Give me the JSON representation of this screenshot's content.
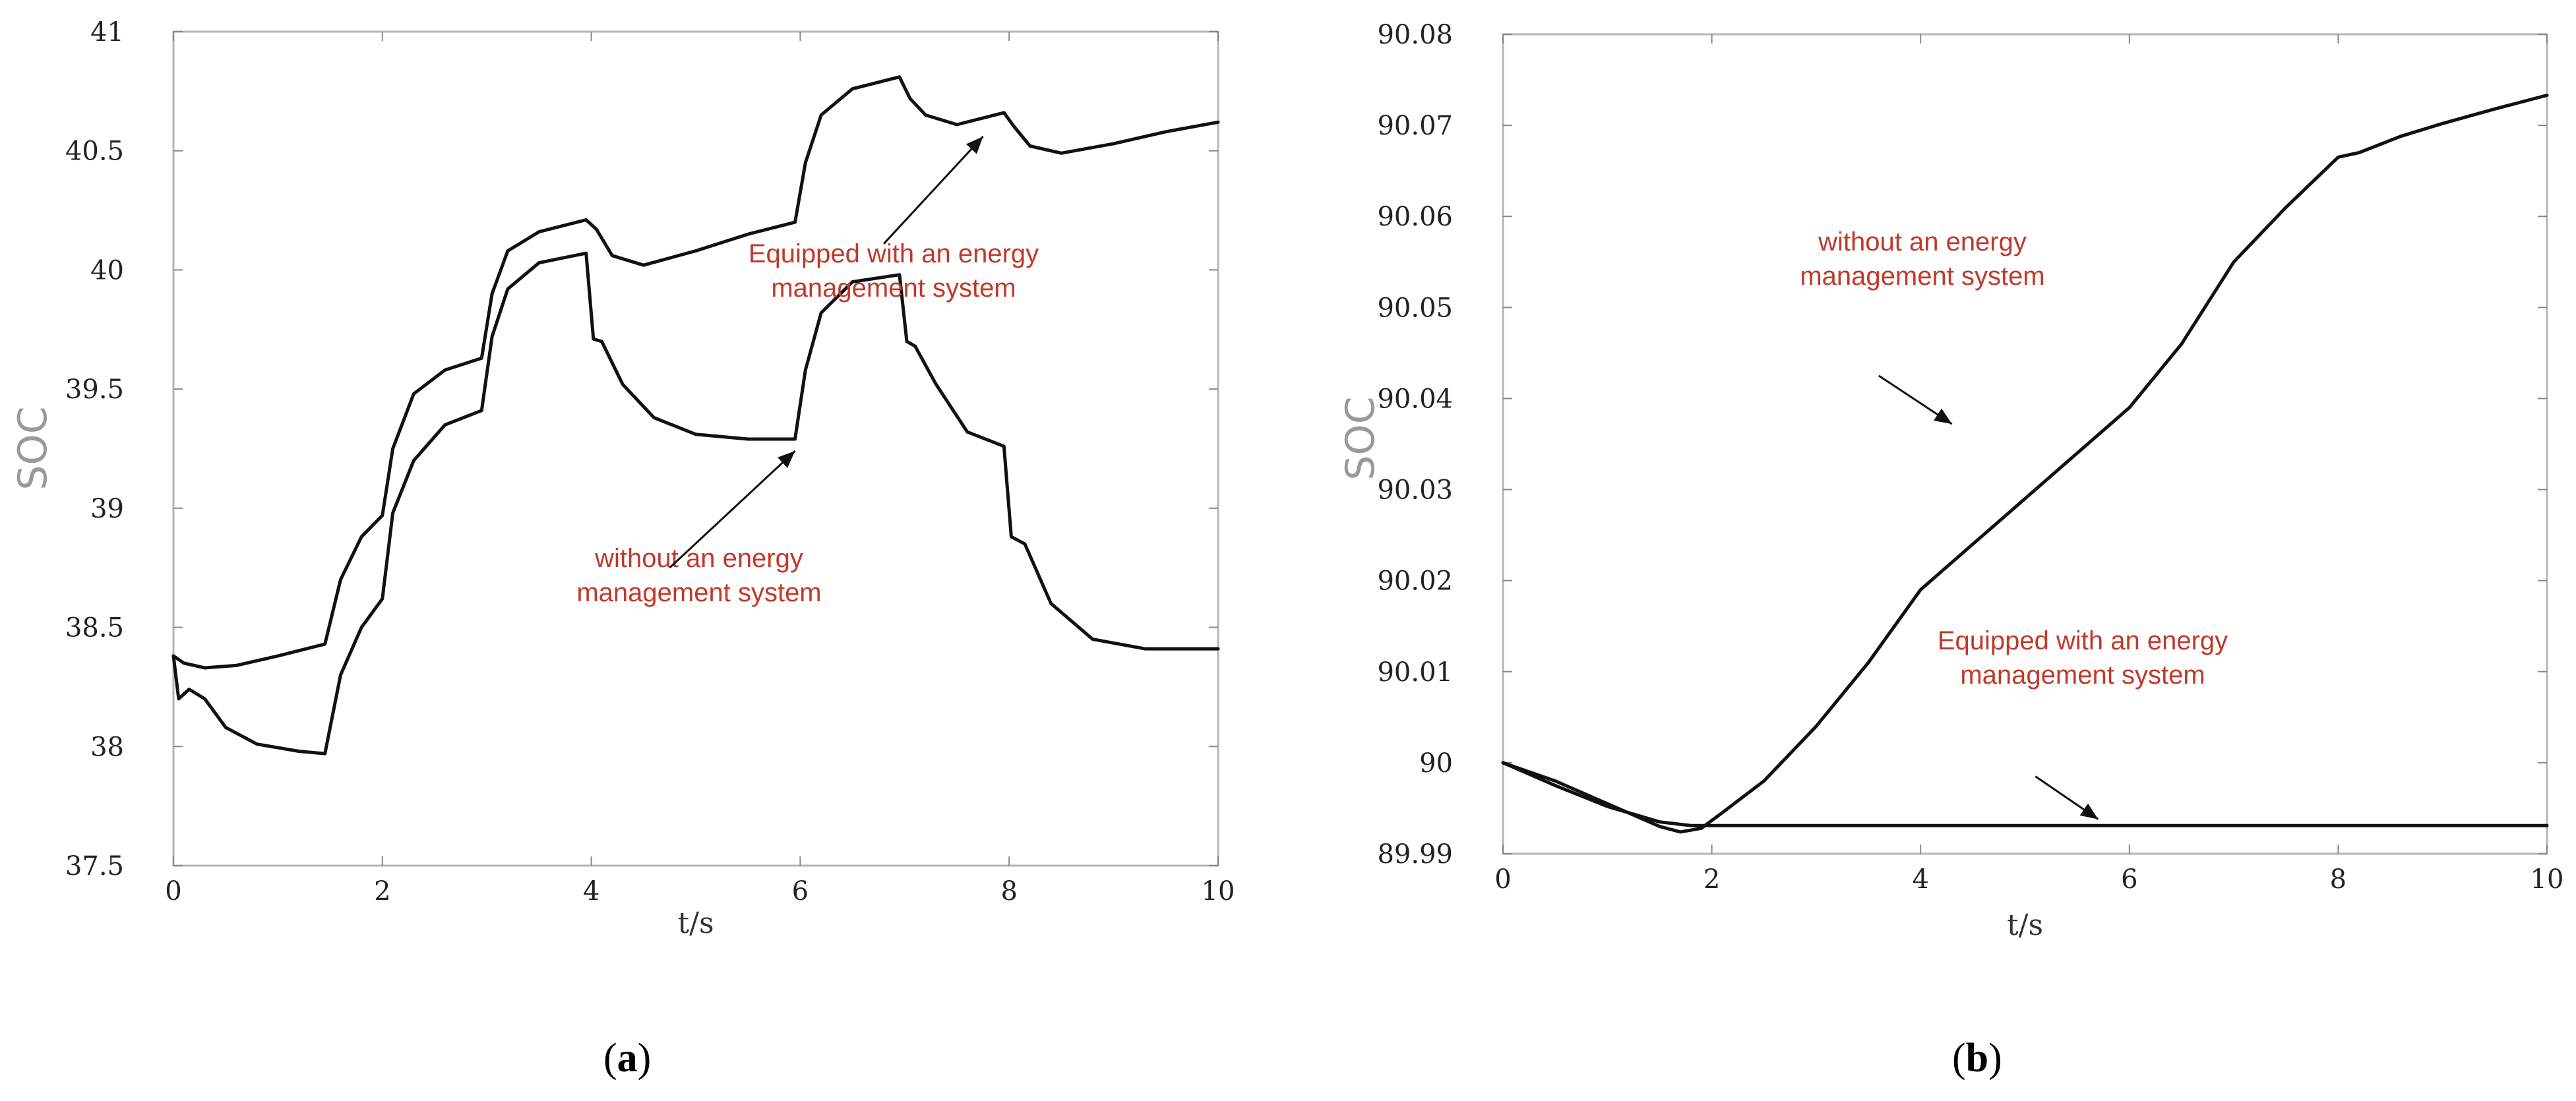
{
  "chart_data": [
    {
      "type": "line",
      "panel": "a",
      "caption_letter": "a",
      "xlabel": "t/s",
      "ylabel": "SOC",
      "xlim": [
        0,
        10
      ],
      "ylim": [
        37.5,
        41
      ],
      "xticks": [
        "0",
        "2",
        "4",
        "6",
        "8",
        "10"
      ],
      "yticks": [
        "37.5",
        "38",
        "38.5",
        "39",
        "39.5",
        "40",
        "40.5",
        "41"
      ],
      "series": [
        {
          "name": "Equipped with an energy management system",
          "x": [
            0,
            0.1,
            0.3,
            0.6,
            1.0,
            1.45,
            1.6,
            1.8,
            2.0,
            2.1,
            2.3,
            2.6,
            2.95,
            3.05,
            3.2,
            3.5,
            3.95,
            4.05,
            4.2,
            4.5,
            5.0,
            5.5,
            5.95,
            6.05,
            6.2,
            6.5,
            6.95,
            7.05,
            7.2,
            7.5,
            7.95,
            8.05,
            8.2,
            8.5,
            9.0,
            9.5,
            10
          ],
          "y": [
            38.38,
            38.35,
            38.33,
            38.34,
            38.38,
            38.43,
            38.7,
            38.88,
            38.97,
            39.25,
            39.48,
            39.58,
            39.63,
            39.9,
            40.08,
            40.16,
            40.21,
            40.17,
            40.06,
            40.02,
            40.08,
            40.15,
            40.2,
            40.45,
            40.65,
            40.76,
            40.81,
            40.72,
            40.65,
            40.61,
            40.66,
            40.6,
            40.52,
            40.49,
            40.53,
            40.58,
            40.62
          ]
        },
        {
          "name": "without an energy management system",
          "x": [
            0,
            0.05,
            0.15,
            0.3,
            0.5,
            0.8,
            1.2,
            1.45,
            1.6,
            1.8,
            2.0,
            2.1,
            2.3,
            2.6,
            2.95,
            3.05,
            3.2,
            3.5,
            3.95,
            4.02,
            4.1,
            4.3,
            4.6,
            5.0,
            5.5,
            5.95,
            6.05,
            6.2,
            6.5,
            6.95,
            7.02,
            7.1,
            7.3,
            7.6,
            7.95,
            8.02,
            8.15,
            8.4,
            8.8,
            9.3,
            10
          ],
          "y": [
            38.38,
            38.2,
            38.24,
            38.2,
            38.08,
            38.01,
            37.98,
            37.97,
            38.3,
            38.5,
            38.62,
            38.98,
            39.2,
            39.35,
            39.41,
            39.72,
            39.92,
            40.03,
            40.07,
            39.71,
            39.7,
            39.52,
            39.38,
            39.31,
            39.29,
            39.29,
            39.58,
            39.82,
            39.95,
            39.98,
            39.7,
            39.68,
            39.52,
            39.32,
            39.26,
            38.88,
            38.85,
            38.6,
            38.45,
            38.41,
            38.41
          ]
        }
      ],
      "annotations": [
        {
          "lines": [
            "Equipped with an energy",
            "management system"
          ],
          "arrow_to_data": [
            7.75,
            40.56
          ],
          "arrow_from_data": [
            6.8,
            40.11
          ]
        },
        {
          "lines": [
            "without an energy",
            "management system"
          ],
          "arrow_to_data": [
            5.95,
            39.24
          ],
          "arrow_from_data": [
            4.75,
            38.75
          ]
        }
      ]
    },
    {
      "type": "line",
      "panel": "b",
      "caption_letter": "b",
      "xlabel": "t/s",
      "ylabel": "SOC",
      "xlim": [
        0,
        10
      ],
      "ylim": [
        89.99,
        90.08
      ],
      "xticks": [
        "0",
        "2",
        "4",
        "6",
        "8",
        "10"
      ],
      "yticks": [
        "89.99",
        "90",
        "90.01",
        "90.02",
        "90.03",
        "90.04",
        "90.05",
        "90.06",
        "90.07",
        "90.08"
      ],
      "series": [
        {
          "name": "without an energy management system",
          "x": [
            0,
            0.5,
            1.0,
            1.5,
            1.7,
            1.9,
            2.1,
            2.5,
            3.0,
            3.5,
            4.0,
            4.5,
            5.0,
            5.5,
            6.0,
            6.5,
            7.0,
            7.5,
            8.0,
            8.2,
            8.6,
            9.0,
            9.5,
            10
          ],
          "y": [
            90.0,
            89.998,
            89.9955,
            89.993,
            89.9924,
            89.9928,
            89.9945,
            89.998,
            90.004,
            90.011,
            90.019,
            90.024,
            90.029,
            90.034,
            90.039,
            90.046,
            90.055,
            90.061,
            90.0665,
            90.067,
            90.0688,
            90.0702,
            90.0718,
            90.0733
          ]
        },
        {
          "name": "Equipped with an energy management system",
          "x": [
            0,
            0.5,
            1.0,
            1.5,
            1.8,
            2.0,
            3.0,
            5.0,
            7.0,
            8.5,
            10
          ],
          "y": [
            90.0,
            89.9975,
            89.9952,
            89.9935,
            89.9931,
            89.9931,
            89.9931,
            89.9931,
            89.9931,
            89.9931,
            89.9931
          ]
        }
      ],
      "annotations": [
        {
          "lines": [
            "without an energy",
            "management system"
          ],
          "arrow_to_data": [
            4.3,
            90.0372
          ],
          "arrow_from_data": [
            3.6,
            90.0425
          ]
        },
        {
          "lines": [
            "Equipped with an energy",
            "management system"
          ],
          "arrow_to_data": [
            5.7,
            89.9938
          ],
          "arrow_from_data": [
            5.1,
            89.9985
          ]
        }
      ]
    }
  ]
}
